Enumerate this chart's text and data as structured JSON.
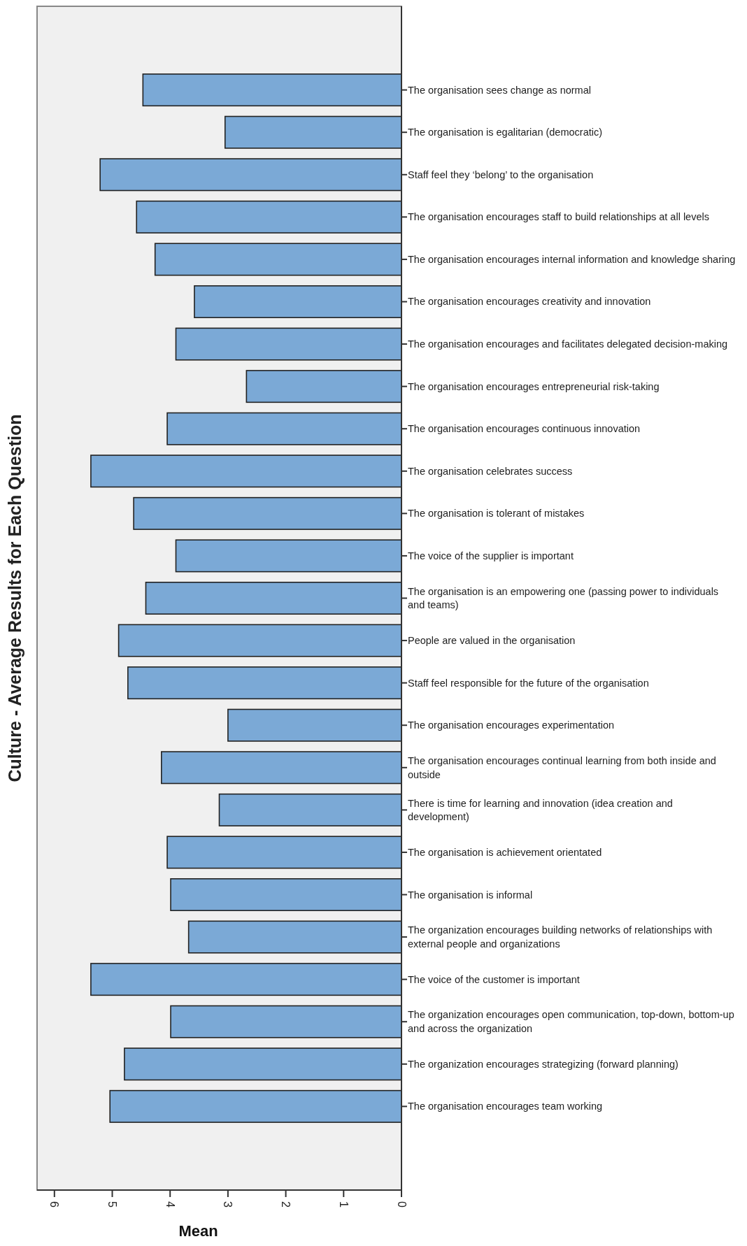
{
  "chart_data": {
    "type": "bar",
    "orientation": "horizontal",
    "ylabel": "Culture - Average Results for Each Question",
    "xlabel": "Mean",
    "categories": [
      "The organisation sees change as normal",
      "The organisation is egalitarian (democratic)",
      "Staff feel they ‘belong’ to the organisation",
      "The organisation encourages staff to build relationships at all levels",
      "The organisation encourages internal information and knowledge sharing",
      "The organisation encourages creativity and innovation",
      "The organisation encourages and facilitates delegated decision-making",
      "The organisation encourages entrepreneurial risk-taking",
      "The organisation encourages continuous innovation",
      "The organisation celebrates success",
      "The organisation is tolerant of mistakes",
      "The voice of the supplier is important",
      "The organisation is an empowering one (passing power to individuals and teams)",
      "People are valued in the organisation",
      "Staff feel responsible for the future of the organisation",
      "The organisation encourages experimentation",
      "The organisation encourages continual learning from both inside and outside",
      "There is time for learning and innovation (idea creation and development)",
      "The organisation is achievement orientated",
      "The organisation is informal",
      "The organization encourages building networks of relationships with external people and organizations",
      "The voice of the customer is important",
      "The organization encourages open communication, top-down, bottom-up and across the organization",
      "The organization encourages strategizing (forward planning)",
      "The organisation encourages team working"
    ],
    "values": [
      4.47,
      3.05,
      5.21,
      4.58,
      4.26,
      3.58,
      3.9,
      2.68,
      4.05,
      5.37,
      4.63,
      3.9,
      4.42,
      4.89,
      4.73,
      3.0,
      4.15,
      3.15,
      4.05,
      3.99,
      3.68,
      5.37,
      3.99,
      4.79,
      5.04
    ],
    "color": "#7ba9d6",
    "xlim": [
      6.3,
      0
    ],
    "xticks": [
      6,
      5,
      4,
      3,
      2,
      1,
      0
    ],
    "grid": false
  }
}
